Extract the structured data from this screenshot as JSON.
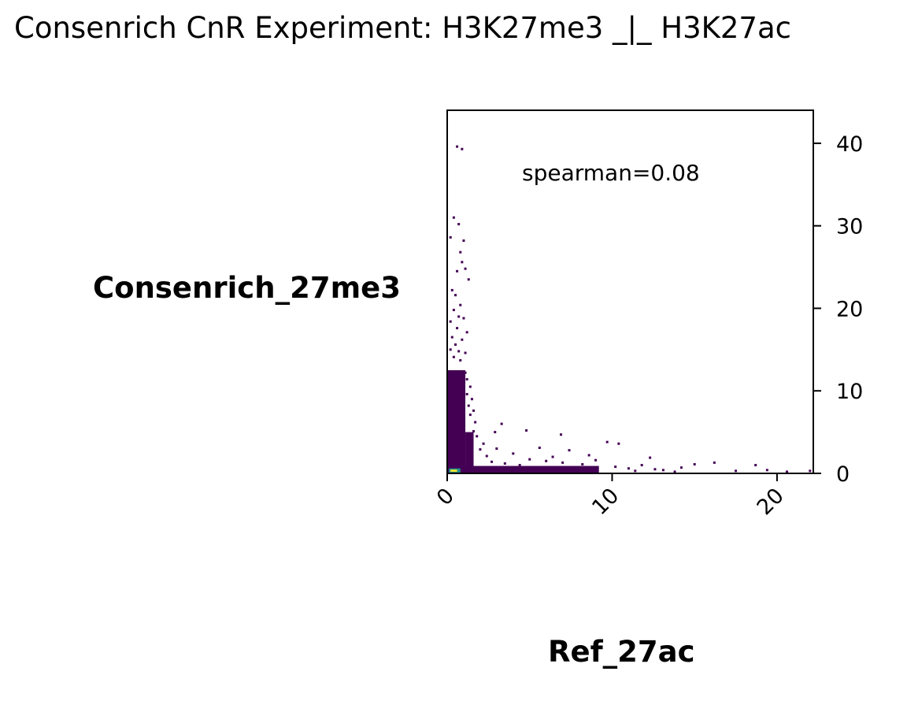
{
  "chart_data": {
    "type": "scatter",
    "subtype": "2d-density-histogram",
    "title": "Consenrich CnR Experiment: H3K27me3 _|_ H3K27ac",
    "xlabel": "Ref_27ac",
    "ylabel": "Consenrich_27me3",
    "annotation": "spearman=0.08",
    "xlim": [
      0,
      22.2
    ],
    "ylim": [
      0,
      44
    ],
    "xticks": [
      "0",
      "10",
      "20"
    ],
    "yticks": [
      "0",
      "10",
      "20",
      "30",
      "40"
    ],
    "yaxis_side": "right",
    "xtick_rotation": -45,
    "grid": false,
    "colormap": "viridis",
    "colors": {
      "low": "#440154",
      "mid": "#21918c",
      "high": "#fde725"
    },
    "points": [
      [
        0.6,
        39.6
      ],
      [
        0.9,
        39.3
      ],
      [
        0.4,
        31.0
      ],
      [
        0.7,
        30.2
      ],
      [
        0.2,
        28.6
      ],
      [
        1.0,
        28.2
      ],
      [
        0.8,
        26.8
      ],
      [
        0.9,
        25.6
      ],
      [
        0.6,
        24.5
      ],
      [
        1.1,
        24.8
      ],
      [
        1.3,
        23.5
      ],
      [
        0.3,
        22.2
      ],
      [
        0.5,
        21.6
      ],
      [
        0.8,
        20.4
      ],
      [
        0.4,
        19.8
      ],
      [
        0.7,
        19.0
      ],
      [
        0.2,
        18.4
      ],
      [
        1.0,
        18.8
      ],
      [
        0.6,
        17.6
      ],
      [
        1.2,
        17.1
      ],
      [
        0.3,
        16.5
      ],
      [
        0.9,
        16.2
      ],
      [
        0.5,
        15.6
      ],
      [
        0.2,
        15.0
      ],
      [
        0.7,
        14.8
      ],
      [
        1.1,
        14.6
      ],
      [
        0.4,
        14.1
      ],
      [
        0.8,
        13.7
      ],
      [
        1.4,
        10.5
      ],
      [
        1.2,
        9.6
      ],
      [
        1.5,
        9.0
      ],
      [
        1.3,
        8.2
      ],
      [
        1.6,
        7.6
      ],
      [
        1.4,
        7.1
      ],
      [
        1.7,
        6.2
      ],
      [
        1.1,
        12.2
      ],
      [
        1.2,
        11.4
      ],
      [
        1.0,
        10.8
      ],
      [
        1.6,
        5.1
      ],
      [
        1.8,
        4.5
      ],
      [
        1.5,
        3.9
      ],
      [
        3.3,
        6.0
      ],
      [
        2.9,
        5.0
      ],
      [
        4.8,
        5.2
      ],
      [
        6.9,
        4.7
      ],
      [
        9.7,
        3.8
      ],
      [
        10.4,
        3.6
      ],
      [
        3.0,
        3.0
      ],
      [
        4.0,
        2.4
      ],
      [
        5.6,
        3.1
      ],
      [
        6.4,
        2.0
      ],
      [
        7.4,
        2.8
      ],
      [
        8.6,
        2.2
      ],
      [
        5.0,
        1.7
      ],
      [
        6.0,
        1.5
      ],
      [
        7.0,
        1.3
      ],
      [
        8.2,
        1.1
      ],
      [
        9.0,
        1.6
      ],
      [
        10.2,
        0.8
      ],
      [
        11.0,
        0.6
      ],
      [
        11.8,
        1.0
      ],
      [
        12.3,
        1.9
      ],
      [
        13.1,
        0.4
      ],
      [
        14.2,
        0.7
      ],
      [
        15.0,
        1.1
      ],
      [
        16.2,
        1.3
      ],
      [
        17.5,
        0.3
      ],
      [
        18.7,
        1.0
      ],
      [
        19.4,
        0.4
      ],
      [
        2.4,
        2.1
      ],
      [
        2.7,
        1.4
      ],
      [
        3.5,
        1.2
      ],
      [
        4.4,
        1.0
      ],
      [
        2.2,
        3.6
      ],
      [
        2.0,
        2.9
      ],
      [
        11.4,
        0.3
      ],
      [
        12.6,
        0.5
      ],
      [
        13.8,
        0.2
      ],
      [
        20.6,
        0.2
      ],
      [
        22.0,
        0.3
      ]
    ]
  }
}
